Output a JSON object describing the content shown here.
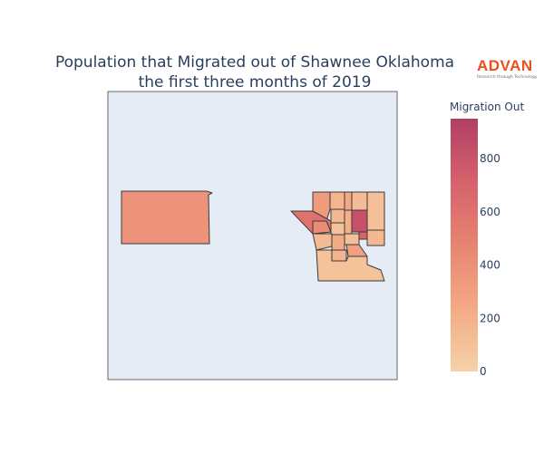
{
  "chart_data": {
    "type": "choropleth",
    "title_lines": [
      "Population that Migrated out of Shawnee Oklahoma",
      "the first three months of 2019"
    ],
    "colorbar": {
      "title": "Migration Out",
      "range": [
        0,
        950
      ],
      "ticks": [
        0,
        200,
        400,
        600,
        800
      ],
      "colorscale": [
        "#f6d2a8",
        "#f3aa84",
        "#e88471",
        "#d6616b",
        "#b13f64"
      ]
    },
    "regions": [
      {
        "name": "west-county-block",
        "value": 380
      },
      {
        "name": "north-zone-a",
        "value": 330
      },
      {
        "name": "north-zone-b",
        "value": 170
      },
      {
        "name": "north-zone-c",
        "value": 250
      },
      {
        "name": "north-zone-d",
        "value": 130
      },
      {
        "name": "northeast-zone",
        "value": 110
      },
      {
        "name": "west-wedge-zone",
        "value": 600
      },
      {
        "name": "central-zone-a",
        "value": 420
      },
      {
        "name": "central-zone-b",
        "value": 160
      },
      {
        "name": "central-zone-c",
        "value": 90
      },
      {
        "name": "central-zone-d",
        "value": 200
      },
      {
        "name": "east-high-zone",
        "value": 820
      },
      {
        "name": "east-zone",
        "value": 150
      },
      {
        "name": "east-small-zone",
        "value": 700
      },
      {
        "name": "south-zone-a",
        "value": 140
      },
      {
        "name": "south-zone-b",
        "value": 230
      },
      {
        "name": "south-zone-c",
        "value": 120
      },
      {
        "name": "south-zone-d",
        "value": 300
      },
      {
        "name": "south-zone-e",
        "value": 180
      },
      {
        "name": "southern-wide-zone",
        "value": 90
      }
    ]
  },
  "logo": {
    "word": "ADVAN",
    "tagline": "Research through Technology"
  }
}
